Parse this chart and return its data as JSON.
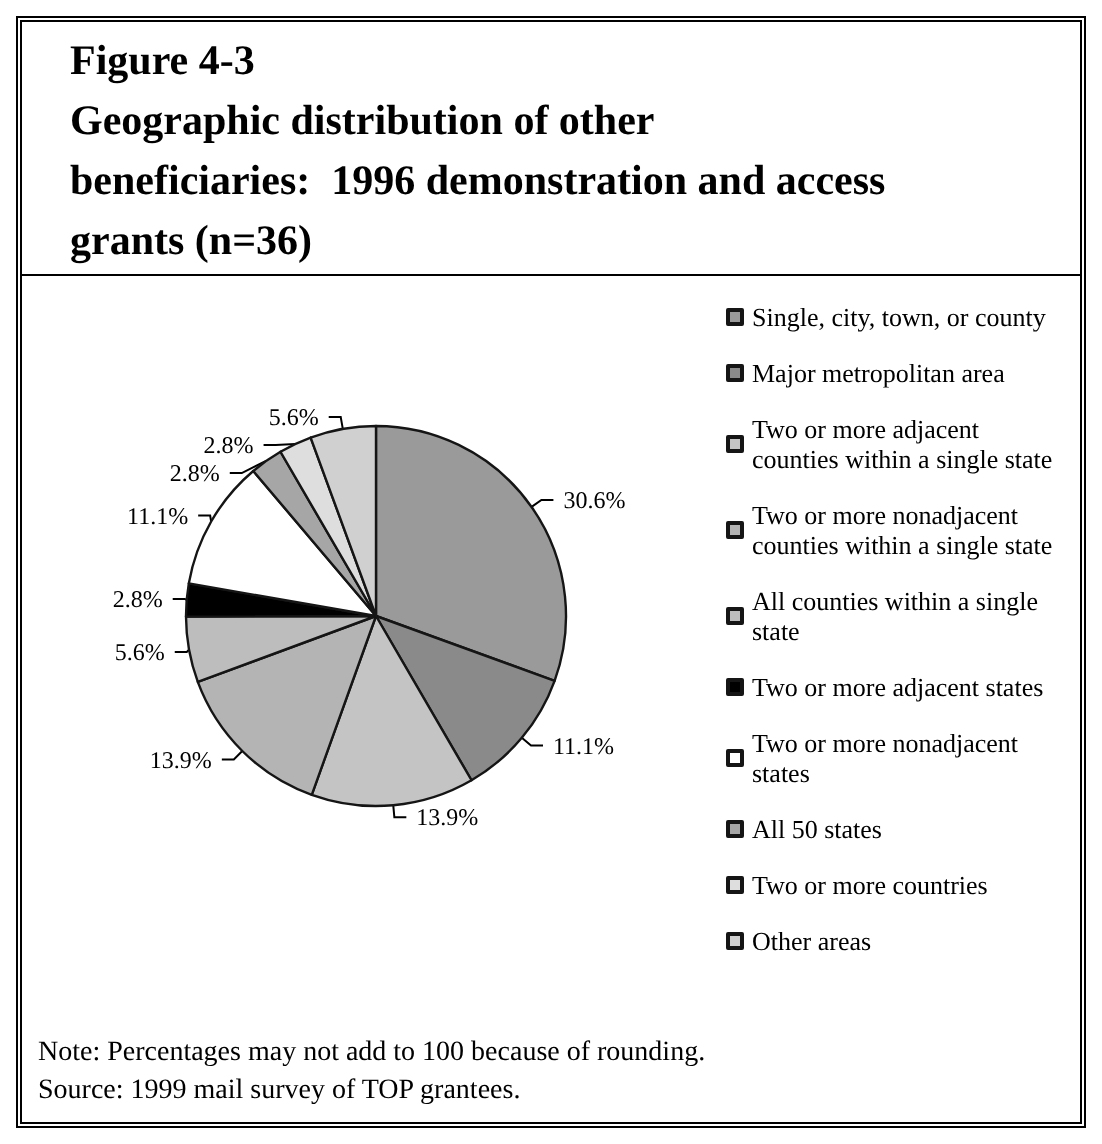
{
  "chart_data": {
    "type": "pie",
    "title": "Figure 4-3\nGeographic distribution of other\nbeneficiaries:  1996 demonstration and access\ngrants (n=36)",
    "categories": [
      "Single, city, town, or county",
      "Major metropolitan area",
      "Two or more adjacent counties within a single state",
      "Two or more nonadjacent counties within a single state",
      "All counties within a single state",
      "Two or more adjacent states",
      "Two or more nonadjacent states",
      "All 50 states",
      "Two or more countries",
      "Other areas"
    ],
    "values": [
      30.6,
      11.1,
      13.9,
      13.9,
      5.6,
      2.8,
      11.1,
      2.8,
      2.8,
      5.6
    ],
    "value_labels": [
      "30.6%",
      "11.1%",
      "13.9%",
      "13.9%",
      "5.6%",
      "2.8%",
      "11.1%",
      "2.8%",
      "2.8%",
      "5.6%"
    ],
    "colors": [
      "#9a9a9a",
      "#8a8a8a",
      "#c4c4c4",
      "#b4b4b4",
      "#bdbdbd",
      "#000000",
      "#ffffff",
      "#a6a6a6",
      "#dedede",
      "#d0d0d0"
    ],
    "legend": "right",
    "annotations": [
      "Note:  Percentages may not add to 100 because of rounding.",
      "Source:  1999 mail survey of TOP grantees."
    ]
  }
}
